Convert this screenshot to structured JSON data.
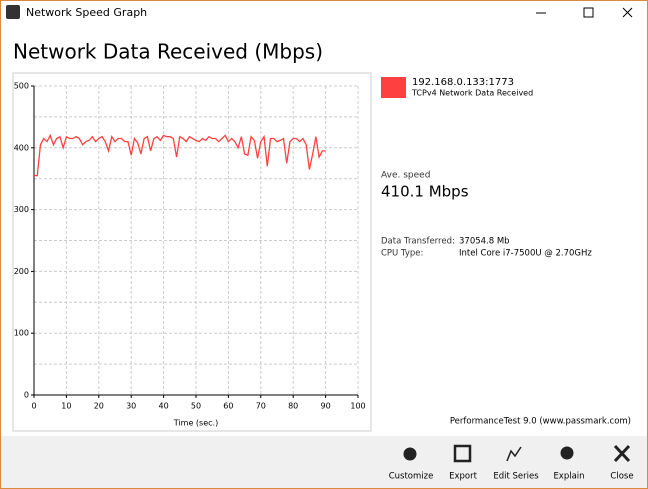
{
  "window_title": "Network Speed Graph",
  "heading": "Network Data Received (Mbps)",
  "chart_data": {
    "type": "line",
    "x_label": "Time (sec.)",
    "x": [
      0,
      1,
      2,
      3,
      4,
      5,
      6,
      7,
      8,
      9,
      10,
      11,
      12,
      13,
      14,
      15,
      16,
      17,
      18,
      19,
      20,
      21,
      22,
      23,
      24,
      25,
      26,
      27,
      28,
      29,
      30,
      31,
      32,
      33,
      34,
      35,
      36,
      37,
      38,
      39,
      40,
      41,
      42,
      43,
      44,
      45,
      46,
      47,
      48,
      49,
      50,
      51,
      52,
      53,
      54,
      55,
      56,
      57,
      58,
      59,
      60,
      61,
      62,
      63,
      64,
      65,
      66,
      67,
      68,
      69,
      70,
      71,
      72,
      73,
      74,
      75,
      76,
      77,
      78,
      79,
      80,
      81,
      82,
      83,
      84,
      85,
      86,
      87,
      88,
      89,
      90
    ],
    "series": [
      {
        "name": "192.168.0.133:1773",
        "color": "#ff4040",
        "values": [
          355,
          355,
          405,
          415,
          410,
          420,
          405,
          415,
          418,
          400,
          418,
          415,
          415,
          418,
          415,
          405,
          410,
          412,
          418,
          410,
          415,
          418,
          410,
          395,
          418,
          410,
          415,
          415,
          410,
          410,
          388,
          415,
          408,
          390,
          415,
          418,
          395,
          415,
          418,
          412,
          420,
          418,
          418,
          415,
          385,
          418,
          415,
          410,
          418,
          415,
          412,
          410,
          415,
          412,
          418,
          415,
          415,
          410,
          415,
          420,
          410,
          415,
          410,
          400,
          418,
          390,
          388,
          418,
          412,
          383,
          410,
          418,
          370,
          415,
          415,
          410,
          412,
          415,
          375,
          410,
          415,
          415,
          410,
          415,
          405,
          365,
          390,
          418,
          385,
          395,
          395
        ]
      }
    ],
    "xlim": [
      0,
      100
    ],
    "xticks": [
      0,
      10,
      20,
      30,
      40,
      50,
      60,
      70,
      80,
      90,
      100
    ],
    "ylim": [
      0,
      500
    ],
    "yticks": [
      0,
      100,
      200,
      300,
      400,
      500
    ],
    "yminor": [
      50,
      150,
      250,
      350,
      450
    ],
    "grid": true
  },
  "legend_subtitle": "TCPv4 Network Data Received",
  "ave_label": "Ave. speed",
  "ave_value": "410.1 Mbps",
  "info": [
    [
      "Data Transferred:",
      "37054.8 Mb"
    ],
    [
      "CPU Type:",
      "Intel Core i7-7500U @ 2.70GHz"
    ]
  ],
  "footer": "PerformanceTest 9.0 (www.passmark.com)",
  "toolbar": [
    "Customize",
    "Export",
    "Edit Series",
    "Explain",
    "Close"
  ]
}
